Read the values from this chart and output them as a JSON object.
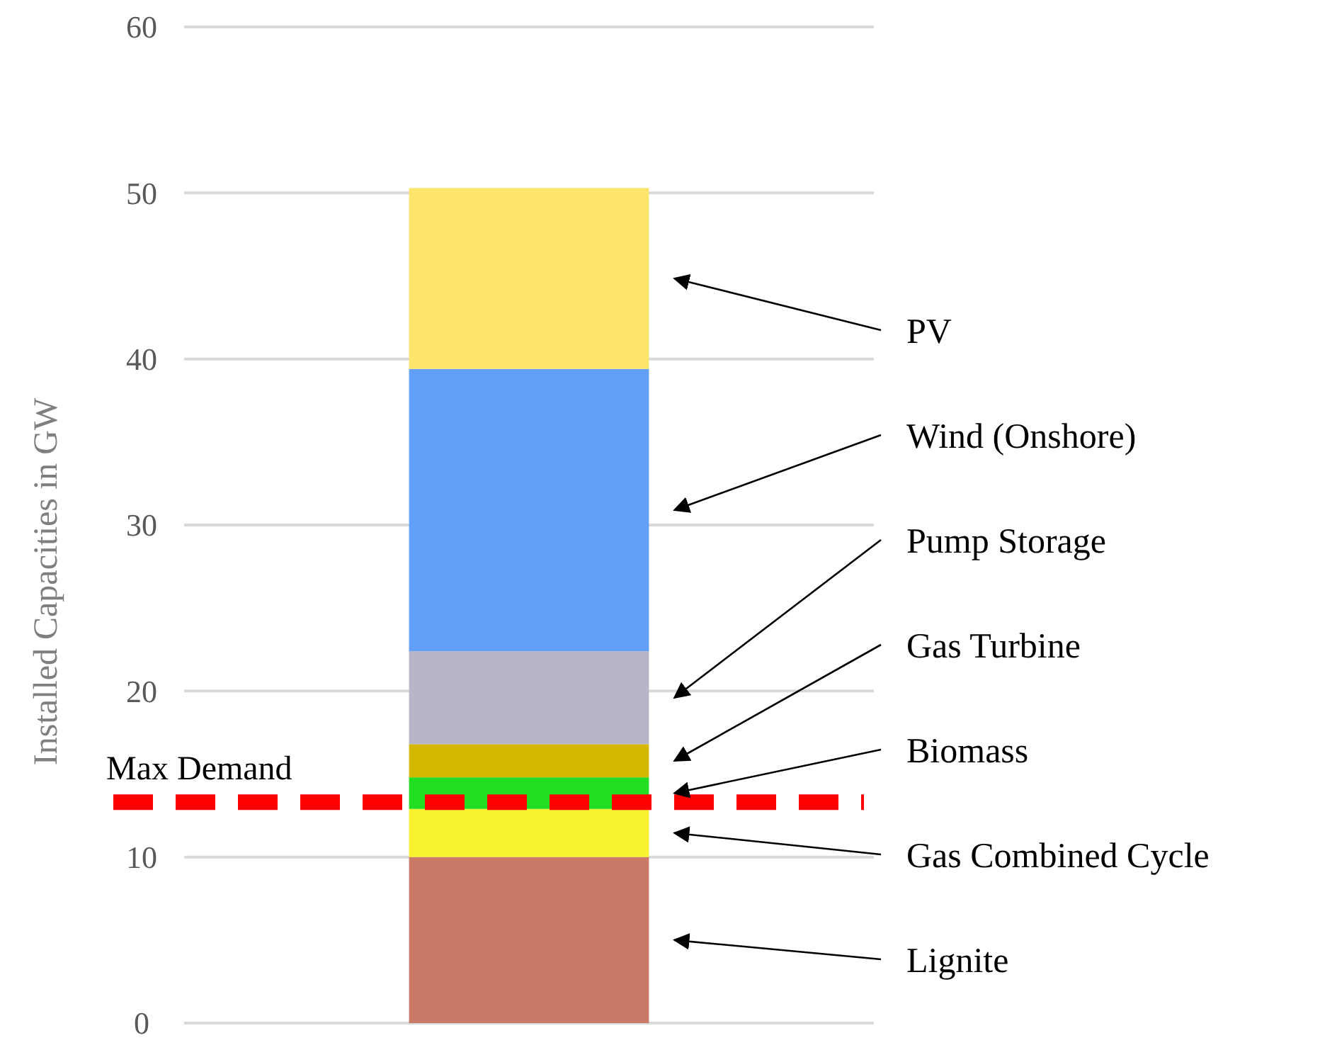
{
  "chart_data": {
    "type": "bar",
    "stacked": true,
    "categories": [
      null
    ],
    "ylabel": "Installed Capacities in GW",
    "ylim": [
      0,
      60
    ],
    "yticks": [
      0,
      10,
      20,
      30,
      40,
      50,
      60
    ],
    "grid": "y",
    "series": [
      {
        "name": "Lignite",
        "color": "#c87a66",
        "values": [
          10
        ]
      },
      {
        "name": "Gas Combined Cycle",
        "color": "#f9f22f",
        "values": [
          2.9
        ]
      },
      {
        "name": "Biomass",
        "color": "#22dd22",
        "values": [
          1.9
        ]
      },
      {
        "name": "Gas Turbine",
        "color": "#d4b800",
        "values": [
          2.0
        ]
      },
      {
        "name": "Pump Storage",
        "color": "#b6b6c8",
        "values": [
          5.6
        ]
      },
      {
        "name": "Wind (Onshore)",
        "color": "#619ff9",
        "values": [
          17.0
        ]
      },
      {
        "name": "PV",
        "color": "#fde46a",
        "values": [
          10.9
        ]
      }
    ],
    "ref_lines": [
      {
        "axis": "y",
        "value": 13.3,
        "label": "Max Demand",
        "color": "#ff0000",
        "line_style": "dashed"
      }
    ]
  }
}
